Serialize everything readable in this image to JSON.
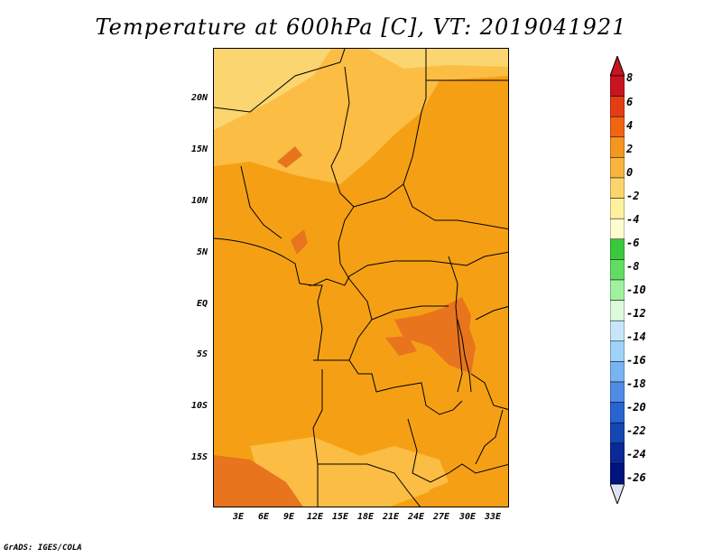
{
  "title": "Temperature at 600hPa [C], VT: 2019041921",
  "footer": "GrADS: IGES/COLA",
  "y_ticks": [
    "20N",
    "15N",
    "10N",
    "5N",
    "EQ",
    "5S",
    "10S",
    "15S"
  ],
  "x_ticks": [
    "3E",
    "6E",
    "9E",
    "12E",
    "15E",
    "18E",
    "21E",
    "24E",
    "27E",
    "30E",
    "33E"
  ],
  "colorbar": {
    "labels": [
      "8",
      "6",
      "4",
      "2",
      "0",
      "-2",
      "-4",
      "-6",
      "-8",
      "-10",
      "-12",
      "-14",
      "-16",
      "-18",
      "-20",
      "-22",
      "-24",
      "-26"
    ],
    "colors": [
      "#c8141e",
      "#e43c14",
      "#f06414",
      "#f5961e",
      "#f8b43c",
      "#fcd46e",
      "#fff0a0",
      "#fffcd2",
      "#3cc83c",
      "#64dc64",
      "#a0f0a0",
      "#dcfadc",
      "#c8e6fa",
      "#a0d2fa",
      "#78b4f0",
      "#508ce6",
      "#2864d2",
      "#1446b4",
      "#0a2896",
      "#00147d"
    ],
    "arrow_top_color": "#c8141e",
    "arrow_bottom_color": "#e1e1f5"
  },
  "map_colors": {
    "base": "#f5a014",
    "warm": "#e8741e",
    "cool": "#fbbd44",
    "coolest": "#fbd56f",
    "hot": "#f06414",
    "border": "#000000"
  }
}
